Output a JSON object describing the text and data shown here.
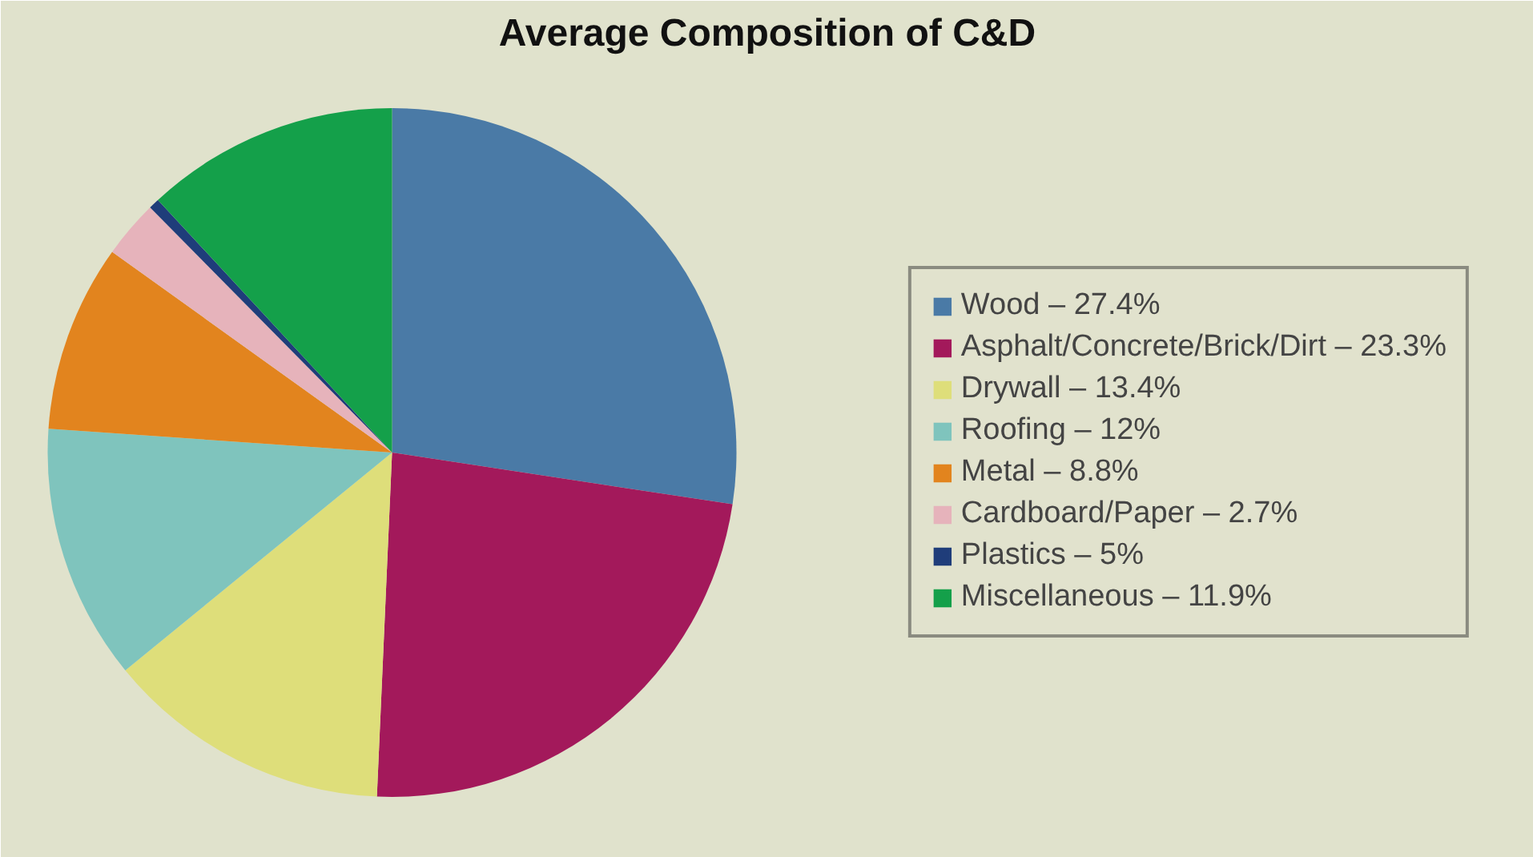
{
  "chart_data": {
    "type": "pie",
    "title": "Average Composition of C&D",
    "categories": [
      "Wood – 27.4%",
      "Asphalt/Concrete/Brick/Dirt – 23.3%",
      "Drywall – 13.4%",
      "Roofing – 12%",
      "Metal – 8.8%",
      "Cardboard/Paper – 2.7%",
      "Plastics – 5%",
      "Miscellaneous – 11.9%"
    ],
    "values": [
      27.4,
      23.3,
      13.4,
      12,
      8.8,
      2.7,
      0.5,
      11.9
    ],
    "colors": [
      "#4a7aa6",
      "#a3195b",
      "#dede7a",
      "#7fc4bd",
      "#e2841e",
      "#e6b3bb",
      "#1f3d7a",
      "#14a04a"
    ],
    "legend": "right"
  }
}
